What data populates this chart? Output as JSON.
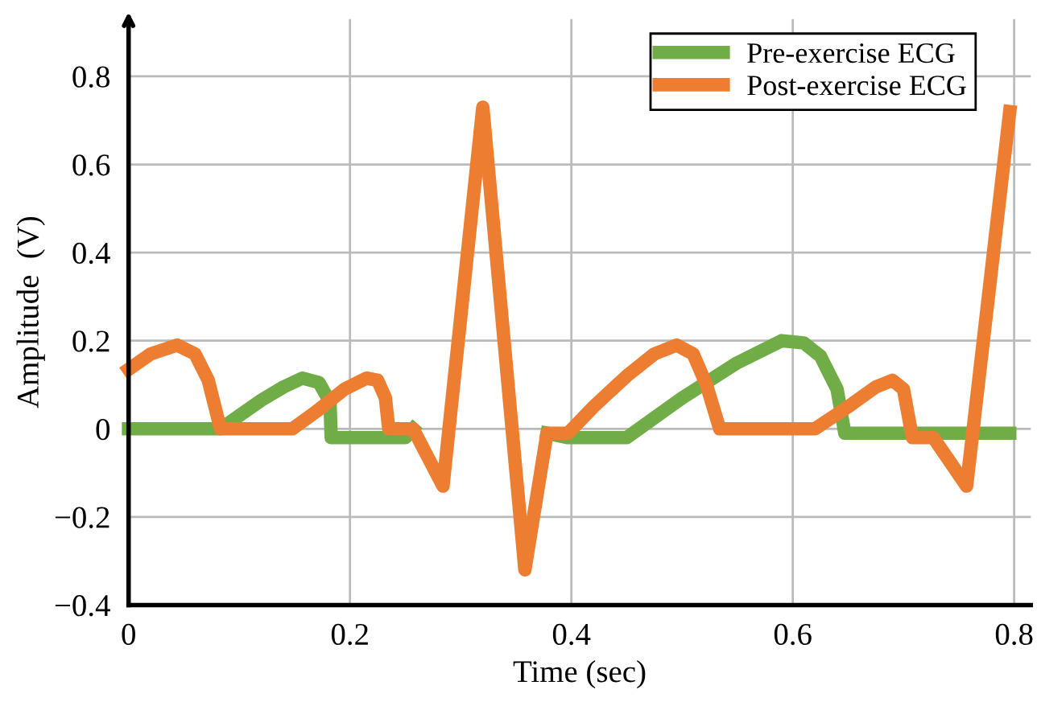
{
  "chart_data": {
    "type": "line",
    "xlabel": "Time (sec)",
    "ylabel": "Amplitude  (V)",
    "xlim": [
      0,
      0.815
    ],
    "ylim": [
      -0.4,
      0.93
    ],
    "xticks": [
      0,
      0.2,
      0.4,
      0.6,
      0.8
    ],
    "yticks": [
      {
        "value": -0.4,
        "label": "−0.4"
      },
      {
        "value": -0.2,
        "label": "−0.2"
      },
      0,
      0.2,
      0.4,
      0.6,
      0.8
    ],
    "grid": true,
    "legend": "top right",
    "marker": "none",
    "line_style": "solid",
    "series": [
      {
        "name": "Pre-exercise ECG",
        "color": "#70ad47",
        "x": [
          0,
          0.083,
          0.1,
          0.12,
          0.14,
          0.157,
          0.172,
          0.182,
          0.183,
          0.25,
          0.257,
          0.284,
          0.32,
          0.358,
          0.378,
          0.397,
          0.45,
          0.5,
          0.55,
          0.59,
          0.61,
          0.625,
          0.64,
          0.647,
          0.796
        ],
        "values": [
          0,
          0,
          0.03,
          0.065,
          0.095,
          0.115,
          0.105,
          0.06,
          -0.02,
          -0.02,
          0,
          null,
          null,
          null,
          -0.01,
          -0.02,
          -0.02,
          0.07,
          0.15,
          0.2,
          0.195,
          0.165,
          0.09,
          -0.01,
          -0.01
        ]
      },
      {
        "name": "Post-exercise ECG",
        "color": "#ed7d31",
        "x": [
          0,
          0.02,
          0.044,
          0.06,
          0.072,
          0.083,
          0.148,
          0.17,
          0.195,
          0.215,
          0.225,
          0.232,
          0.235,
          0.257,
          0.284,
          0.32,
          0.358,
          0.378,
          0.397,
          0.42,
          0.45,
          0.475,
          0.495,
          0.51,
          0.522,
          0.534,
          0.62,
          0.65,
          0.675,
          0.69,
          0.7,
          0.708,
          0.727,
          0.757,
          0.796
        ],
        "values": [
          0.135,
          0.17,
          0.19,
          0.17,
          0.11,
          0,
          0,
          0.04,
          0.09,
          0.115,
          0.11,
          0.07,
          0,
          0,
          -0.13,
          0.73,
          -0.32,
          -0.01,
          -0.01,
          0.05,
          0.12,
          0.17,
          0.19,
          0.17,
          0.1,
          0,
          0,
          0.05,
          0.095,
          0.11,
          0.09,
          -0.02,
          -0.02,
          -0.13,
          0.72
        ]
      }
    ]
  }
}
